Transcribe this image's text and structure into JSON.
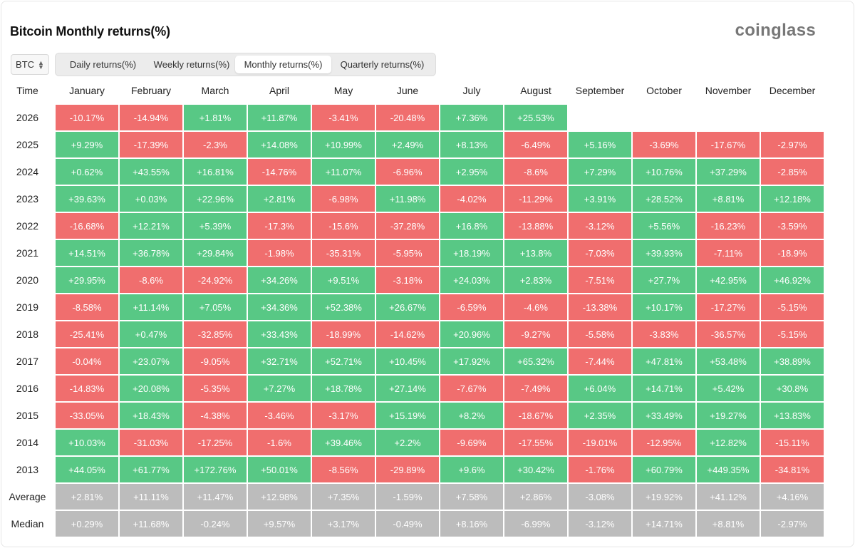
{
  "header": {
    "title": "Bitcoin Monthly returns(%)",
    "brand": "coinglass"
  },
  "coin_select": {
    "value": "BTC"
  },
  "tabs": [
    {
      "label": "Daily returns(%)",
      "active": false
    },
    {
      "label": "Weekly returns(%)",
      "active": false
    },
    {
      "label": "Monthly returns(%)",
      "active": true
    },
    {
      "label": "Quarterly returns(%)",
      "active": false
    }
  ],
  "colors": {
    "positive": "#58c885",
    "negative": "#f06e6e",
    "summary": "#bcbcbc"
  },
  "chart_data": {
    "type": "heatmap",
    "title": "Bitcoin Monthly returns(%)",
    "row_header": "Time",
    "columns": [
      "January",
      "February",
      "March",
      "April",
      "May",
      "June",
      "July",
      "August",
      "September",
      "October",
      "November",
      "December"
    ],
    "rows": [
      {
        "label": "2026",
        "values": [
          "-10.17%",
          "-14.94%",
          "+1.81%",
          "+11.87%",
          "-3.41%",
          "-20.48%",
          "+7.36%",
          "+25.53%",
          null,
          null,
          null,
          null
        ]
      },
      {
        "label": "2025",
        "values": [
          "+9.29%",
          "-17.39%",
          "-2.3%",
          "+14.08%",
          "+10.99%",
          "+2.49%",
          "+8.13%",
          "-6.49%",
          "+5.16%",
          "-3.69%",
          "-17.67%",
          "-2.97%"
        ]
      },
      {
        "label": "2024",
        "values": [
          "+0.62%",
          "+43.55%",
          "+16.81%",
          "-14.76%",
          "+11.07%",
          "-6.96%",
          "+2.95%",
          "-8.6%",
          "+7.29%",
          "+10.76%",
          "+37.29%",
          "-2.85%"
        ]
      },
      {
        "label": "2023",
        "values": [
          "+39.63%",
          "+0.03%",
          "+22.96%",
          "+2.81%",
          "-6.98%",
          "+11.98%",
          "-4.02%",
          "-11.29%",
          "+3.91%",
          "+28.52%",
          "+8.81%",
          "+12.18%"
        ]
      },
      {
        "label": "2022",
        "values": [
          "-16.68%",
          "+12.21%",
          "+5.39%",
          "-17.3%",
          "-15.6%",
          "-37.28%",
          "+16.8%",
          "-13.88%",
          "-3.12%",
          "+5.56%",
          "-16.23%",
          "-3.59%"
        ]
      },
      {
        "label": "2021",
        "values": [
          "+14.51%",
          "+36.78%",
          "+29.84%",
          "-1.98%",
          "-35.31%",
          "-5.95%",
          "+18.19%",
          "+13.8%",
          "-7.03%",
          "+39.93%",
          "-7.11%",
          "-18.9%"
        ]
      },
      {
        "label": "2020",
        "values": [
          "+29.95%",
          "-8.6%",
          "-24.92%",
          "+34.26%",
          "+9.51%",
          "-3.18%",
          "+24.03%",
          "+2.83%",
          "-7.51%",
          "+27.7%",
          "+42.95%",
          "+46.92%"
        ]
      },
      {
        "label": "2019",
        "values": [
          "-8.58%",
          "+11.14%",
          "+7.05%",
          "+34.36%",
          "+52.38%",
          "+26.67%",
          "-6.59%",
          "-4.6%",
          "-13.38%",
          "+10.17%",
          "-17.27%",
          "-5.15%"
        ]
      },
      {
        "label": "2018",
        "values": [
          "-25.41%",
          "+0.47%",
          "-32.85%",
          "+33.43%",
          "-18.99%",
          "-14.62%",
          "+20.96%",
          "-9.27%",
          "-5.58%",
          "-3.83%",
          "-36.57%",
          "-5.15%"
        ]
      },
      {
        "label": "2017",
        "values": [
          "-0.04%",
          "+23.07%",
          "-9.05%",
          "+32.71%",
          "+52.71%",
          "+10.45%",
          "+17.92%",
          "+65.32%",
          "-7.44%",
          "+47.81%",
          "+53.48%",
          "+38.89%"
        ]
      },
      {
        "label": "2016",
        "values": [
          "-14.83%",
          "+20.08%",
          "-5.35%",
          "+7.27%",
          "+18.78%",
          "+27.14%",
          "-7.67%",
          "-7.49%",
          "+6.04%",
          "+14.71%",
          "+5.42%",
          "+30.8%"
        ]
      },
      {
        "label": "2015",
        "values": [
          "-33.05%",
          "+18.43%",
          "-4.38%",
          "-3.46%",
          "-3.17%",
          "+15.19%",
          "+8.2%",
          "-18.67%",
          "+2.35%",
          "+33.49%",
          "+19.27%",
          "+13.83%"
        ]
      },
      {
        "label": "2014",
        "values": [
          "+10.03%",
          "-31.03%",
          "-17.25%",
          "-1.6%",
          "+39.46%",
          "+2.2%",
          "-9.69%",
          "-17.55%",
          "-19.01%",
          "-12.95%",
          "+12.82%",
          "-15.11%"
        ]
      },
      {
        "label": "2013",
        "values": [
          "+44.05%",
          "+61.77%",
          "+172.76%",
          "+50.01%",
          "-8.56%",
          "-29.89%",
          "+9.6%",
          "+30.42%",
          "-1.76%",
          "+60.79%",
          "+449.35%",
          "-34.81%"
        ]
      }
    ],
    "summary_rows": [
      {
        "label": "Average",
        "values": [
          "+2.81%",
          "+11.11%",
          "+11.47%",
          "+12.98%",
          "+7.35%",
          "-1.59%",
          "+7.58%",
          "+2.86%",
          "-3.08%",
          "+19.92%",
          "+41.12%",
          "+4.16%"
        ]
      },
      {
        "label": "Median",
        "values": [
          "+0.29%",
          "+11.68%",
          "-0.24%",
          "+9.57%",
          "+3.17%",
          "-0.49%",
          "+8.16%",
          "-6.99%",
          "-3.12%",
          "+14.71%",
          "+8.81%",
          "-2.97%"
        ]
      }
    ]
  }
}
